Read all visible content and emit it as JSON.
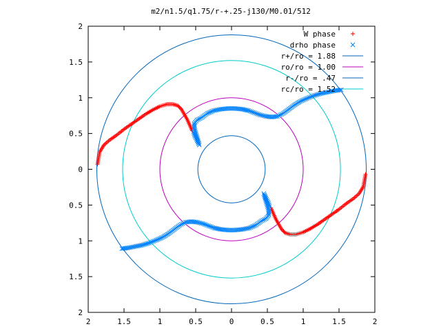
{
  "chart_data": {
    "type": "scatter",
    "title": "m2/n1.5/q1.75/r-+.25-j130/M0.01/512",
    "xlabel": "",
    "ylabel": "",
    "xlim": [
      -2,
      2
    ],
    "ylim": [
      -2,
      2
    ],
    "x_ticks": [
      -2,
      -1.5,
      -1,
      -0.5,
      0,
      0.5,
      1,
      1.5,
      2
    ],
    "y_ticks": [
      -2,
      -1.5,
      -1,
      -0.5,
      0,
      0.5,
      1,
      1.5,
      2
    ],
    "x_tick_labels": [
      "2",
      "1.5",
      "1",
      "0.5",
      "0",
      "0.5",
      "1",
      "1.5",
      "2"
    ],
    "y_tick_labels": [
      "2",
      "1.5",
      "1",
      "0.5",
      "0",
      "0.5",
      "1",
      "1.5",
      "2"
    ],
    "grid": false,
    "legend_position": "top-right",
    "series": [
      {
        "name": "W phase",
        "marker": "plus",
        "color": "#ff0000",
        "points": [
          [
            -1.87,
            0.07
          ],
          [
            -1.84,
            0.24
          ],
          [
            -1.78,
            0.34
          ],
          [
            -1.7,
            0.41
          ],
          [
            -1.6,
            0.48
          ],
          [
            -1.5,
            0.56
          ],
          [
            -1.4,
            0.63
          ],
          [
            -1.3,
            0.7
          ],
          [
            -1.2,
            0.77
          ],
          [
            -1.1,
            0.83
          ],
          [
            -1.0,
            0.88
          ],
          [
            -0.9,
            0.91
          ],
          [
            -0.82,
            0.91
          ],
          [
            -0.75,
            0.89
          ],
          [
            -0.7,
            0.84
          ],
          [
            -0.66,
            0.77
          ],
          [
            -0.62,
            0.7
          ],
          [
            -0.58,
            0.61
          ],
          [
            -0.55,
            0.54
          ],
          [
            1.87,
            -0.07
          ],
          [
            1.84,
            -0.24
          ],
          [
            1.78,
            -0.34
          ],
          [
            1.7,
            -0.41
          ],
          [
            1.6,
            -0.48
          ],
          [
            1.5,
            -0.56
          ],
          [
            1.4,
            -0.63
          ],
          [
            1.3,
            -0.7
          ],
          [
            1.2,
            -0.77
          ],
          [
            1.1,
            -0.83
          ],
          [
            1.0,
            -0.88
          ],
          [
            0.9,
            -0.91
          ],
          [
            0.82,
            -0.91
          ],
          [
            0.75,
            -0.89
          ],
          [
            0.7,
            -0.84
          ],
          [
            0.66,
            -0.77
          ],
          [
            0.62,
            -0.7
          ],
          [
            0.58,
            -0.61
          ],
          [
            0.55,
            -0.54
          ]
        ]
      },
      {
        "name": "drho phase",
        "marker": "cross",
        "color": "#0080ff",
        "points": [
          [
            -0.53,
            0.52
          ],
          [
            -0.51,
            0.46
          ],
          [
            -0.48,
            0.4
          ],
          [
            -0.45,
            0.34
          ],
          [
            -0.52,
            0.58
          ],
          [
            -0.52,
            0.64
          ],
          [
            -0.48,
            0.69
          ],
          [
            -0.42,
            0.72
          ],
          [
            -0.34,
            0.78
          ],
          [
            -0.25,
            0.82
          ],
          [
            -0.15,
            0.84
          ],
          [
            -0.05,
            0.85
          ],
          [
            0.05,
            0.85
          ],
          [
            0.15,
            0.84
          ],
          [
            0.24,
            0.82
          ],
          [
            0.32,
            0.79
          ],
          [
            0.4,
            0.76
          ],
          [
            0.48,
            0.74
          ],
          [
            0.56,
            0.73
          ],
          [
            0.64,
            0.74
          ],
          [
            0.72,
            0.78
          ],
          [
            0.8,
            0.84
          ],
          [
            0.88,
            0.9
          ],
          [
            0.96,
            0.95
          ],
          [
            1.05,
            0.99
          ],
          [
            1.15,
            1.03
          ],
          [
            1.25,
            1.06
          ],
          [
            1.35,
            1.08
          ],
          [
            1.45,
            1.1
          ],
          [
            1.53,
            1.11
          ],
          [
            0.53,
            -0.52
          ],
          [
            0.51,
            -0.46
          ],
          [
            0.48,
            -0.4
          ],
          [
            0.45,
            -0.34
          ],
          [
            0.52,
            -0.58
          ],
          [
            0.52,
            -0.64
          ],
          [
            0.48,
            -0.69
          ],
          [
            0.42,
            -0.72
          ],
          [
            0.34,
            -0.78
          ],
          [
            0.25,
            -0.82
          ],
          [
            0.15,
            -0.84
          ],
          [
            0.05,
            -0.85
          ],
          [
            -0.05,
            -0.85
          ],
          [
            -0.15,
            -0.84
          ],
          [
            -0.24,
            -0.82
          ],
          [
            -0.32,
            -0.79
          ],
          [
            -0.4,
            -0.76
          ],
          [
            -0.48,
            -0.74
          ],
          [
            -0.56,
            -0.73
          ],
          [
            -0.64,
            -0.74
          ],
          [
            -0.72,
            -0.78
          ],
          [
            -0.8,
            -0.84
          ],
          [
            -0.88,
            -0.9
          ],
          [
            -0.96,
            -0.95
          ],
          [
            -1.05,
            -0.99
          ],
          [
            -1.15,
            -1.03
          ],
          [
            -1.25,
            -1.06
          ],
          [
            -1.35,
            -1.08
          ],
          [
            -1.45,
            -1.1
          ],
          [
            -1.53,
            -1.11
          ]
        ]
      }
    ],
    "circles": [
      {
        "name": "r+/ro = 1.88",
        "radius": 1.88,
        "color": "#0066bb"
      },
      {
        "name": "ro/ro = 1.00",
        "radius": 1.0,
        "color": "#bb00bb"
      },
      {
        "name": "r-/ro = .47",
        "radius": 0.47,
        "color": "#0066bb"
      },
      {
        "name": "rc/ro = 1.52",
        "radius": 1.52,
        "color": "#00cccc"
      }
    ]
  }
}
